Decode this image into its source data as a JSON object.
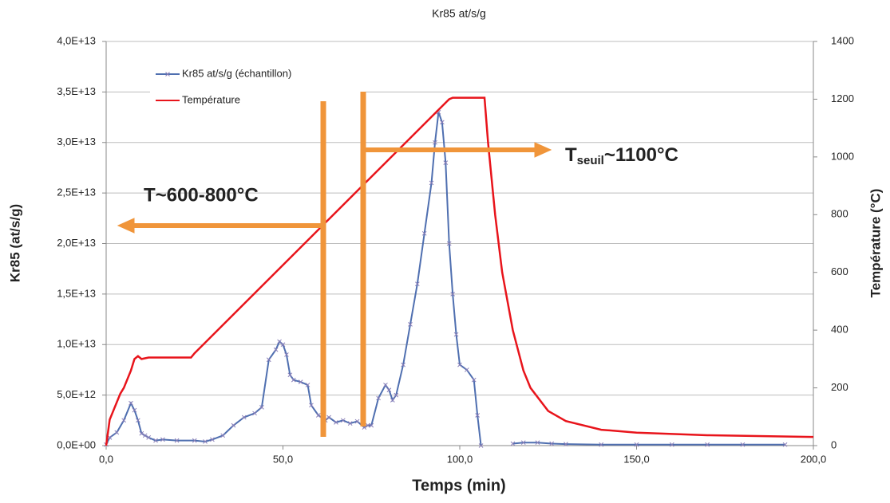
{
  "chart_data": {
    "type": "line",
    "title": "Kr85 at/s/g",
    "xlabel": "Temps (min)",
    "ylabel": "Kr85 (at/s/g)",
    "y2label": "Température (°C)",
    "xlim": [
      0,
      200
    ],
    "xticks": [
      {
        "value": 0,
        "label": "0,0"
      },
      {
        "value": 50,
        "label": "50,0"
      },
      {
        "value": 100,
        "label": "100,0"
      },
      {
        "value": 150,
        "label": "150,0"
      },
      {
        "value": 200,
        "label": "200,0"
      }
    ],
    "ylim": [
      0,
      40000000000000.0
    ],
    "yticks": [
      {
        "value": 0,
        "label": "0,0E+00"
      },
      {
        "value": 5000000000000.0,
        "label": "5,0E+12"
      },
      {
        "value": 10000000000000.0,
        "label": "1,0E+13"
      },
      {
        "value": 15000000000000.0,
        "label": "1,5E+13"
      },
      {
        "value": 20000000000000.0,
        "label": "2,0E+13"
      },
      {
        "value": 25000000000000.0,
        "label": "2,5E+13"
      },
      {
        "value": 30000000000000.0,
        "label": "3,0E+13"
      },
      {
        "value": 35000000000000.0,
        "label": "3,5E+13"
      },
      {
        "value": 40000000000000.0,
        "label": "4,0E+13"
      }
    ],
    "y2lim": [
      0,
      1400
    ],
    "y2ticks": [
      0,
      200,
      400,
      600,
      800,
      1000,
      1200,
      1400
    ],
    "grid": true,
    "legend": "top-left",
    "annotations": [
      {
        "text": "T~600-800°C"
      },
      {
        "text": "T",
        "sub": "seuil",
        "rest": "~1100°C"
      }
    ],
    "series": [
      {
        "name": "Kr85 at/s/g (échantillon)",
        "color": "#4f6fb0",
        "x": [
          0,
          1,
          3,
          5,
          7,
          8,
          9,
          10,
          11,
          12,
          14,
          16,
          20,
          25,
          28,
          30,
          33,
          36,
          39,
          42,
          44,
          46,
          48,
          49,
          50,
          51,
          52,
          53,
          55,
          57,
          58,
          60,
          62,
          63,
          65,
          67,
          69,
          71,
          73,
          74,
          75,
          77,
          79,
          80,
          81,
          82,
          84,
          86,
          88,
          90,
          92,
          93,
          94,
          95,
          96,
          97,
          98,
          99,
          100,
          102,
          104,
          105,
          106,
          110,
          115,
          118,
          122,
          126,
          130,
          140,
          150,
          160,
          170,
          180,
          192
        ],
        "values": [
          100000000000.0,
          800000000000.0,
          1300000000000.0,
          2500000000000.0,
          4200000000000.0,
          3500000000000.0,
          2500000000000.0,
          1200000000000.0,
          1000000000000.0,
          800000000000.0,
          500000000000.0,
          600000000000.0,
          500000000000.0,
          500000000000.0,
          400000000000.0,
          600000000000.0,
          1000000000000.0,
          2000000000000.0,
          2800000000000.0,
          3200000000000.0,
          3800000000000.0,
          8500000000000.0,
          9500000000000.0,
          10300000000000.0,
          10000000000000.0,
          9000000000000.0,
          7000000000000.0,
          6500000000000.0,
          6300000000000.0,
          6000000000000.0,
          4000000000000.0,
          3000000000000.0,
          2500000000000.0,
          2800000000000.0,
          2300000000000.0,
          2500000000000.0,
          2200000000000.0,
          2400000000000.0,
          1800000000000.0,
          2000000000000.0,
          2000000000000.0,
          4700000000000.0,
          6000000000000.0,
          5500000000000.0,
          4500000000000.0,
          5000000000000.0,
          8000000000000.0,
          12000000000000.0,
          16000000000000.0,
          21000000000000.0,
          26000000000000.0,
          30000000000000.0,
          33000000000000.0,
          32000000000000.0,
          28000000000000.0,
          20000000000000.0,
          15000000000000.0,
          11000000000000.0,
          8000000000000.0,
          7500000000000.0,
          6500000000000.0,
          3000000000000.0,
          0,
          null,
          200000000000.0,
          300000000000.0,
          300000000000.0,
          200000000000.0,
          150000000000.0,
          100000000000.0,
          100000000000.0,
          100000000000.0,
          100000000000.0,
          100000000000.0,
          100000000000.0
        ]
      },
      {
        "name": "Température",
        "color": "#e8141b",
        "axis": "y2",
        "x": [
          0,
          1,
          2,
          3,
          4,
          5,
          6,
          7,
          8,
          9,
          10,
          12,
          24,
          25,
          97,
          98,
          107,
          108,
          110,
          112,
          115,
          118,
          120,
          125,
          130,
          140,
          150,
          170,
          200
        ],
        "values": [
          0,
          90,
          120,
          150,
          180,
          200,
          230,
          260,
          300,
          310,
          300,
          305,
          305,
          320,
          1200,
          1205,
          1205,
          1050,
          800,
          600,
          400,
          260,
          200,
          120,
          85,
          55,
          45,
          36,
          30
        ]
      }
    ]
  }
}
